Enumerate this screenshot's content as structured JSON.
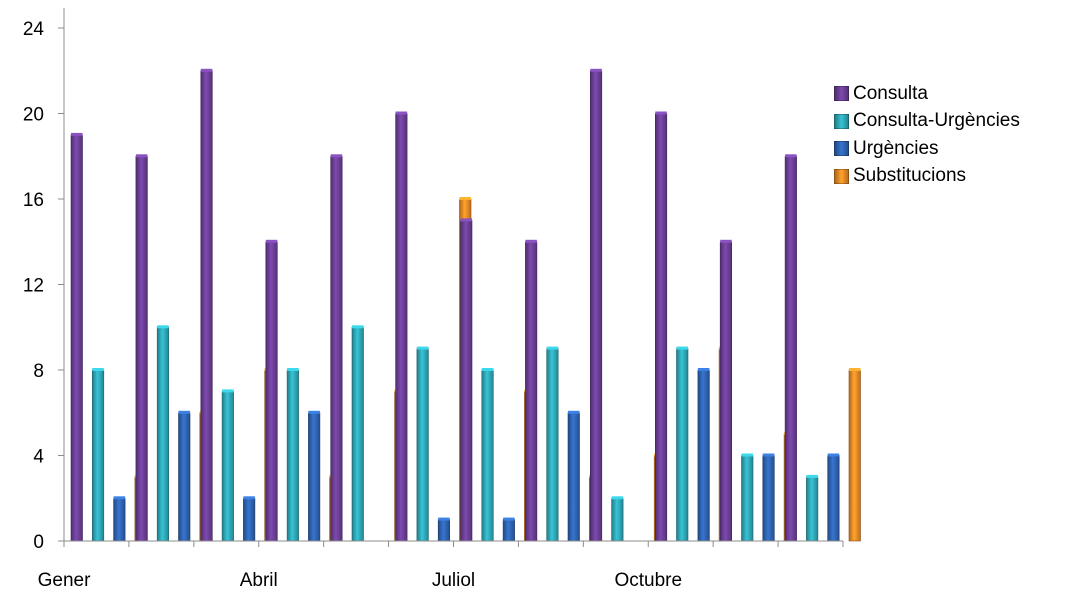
{
  "chart_data": {
    "type": "bar",
    "categories": [
      "Gener",
      "",
      "",
      "Abril",
      "",
      "",
      "Juliol",
      "",
      "",
      "Octubre",
      "",
      ""
    ],
    "series": [
      {
        "name": "Consulta",
        "color": "#6b3f95",
        "values": [
          19,
          18,
          22,
          14,
          18,
          20,
          15,
          14,
          22,
          20,
          14,
          18
        ]
      },
      {
        "name": "Consulta-Urgències",
        "color": "#2fa6b5",
        "values": [
          8,
          10,
          7,
          8,
          10,
          9,
          8,
          9,
          2,
          9,
          4,
          3
        ]
      },
      {
        "name": "Urgències",
        "color": "#2f63b0",
        "values": [
          2,
          6,
          2,
          6,
          0,
          1,
          1,
          6,
          0,
          8,
          4,
          4
        ]
      },
      {
        "name": "Substitucions",
        "color": "#ec8a25",
        "values": [
          3,
          6,
          8,
          3,
          7,
          16,
          7,
          3,
          4,
          9,
          5,
          8
        ]
      }
    ],
    "ylim": [
      0,
      24
    ],
    "yticks": [
      "0",
      "4",
      "8",
      "12",
      "16",
      "20",
      "24"
    ],
    "legend_position": "right",
    "grid": false
  }
}
